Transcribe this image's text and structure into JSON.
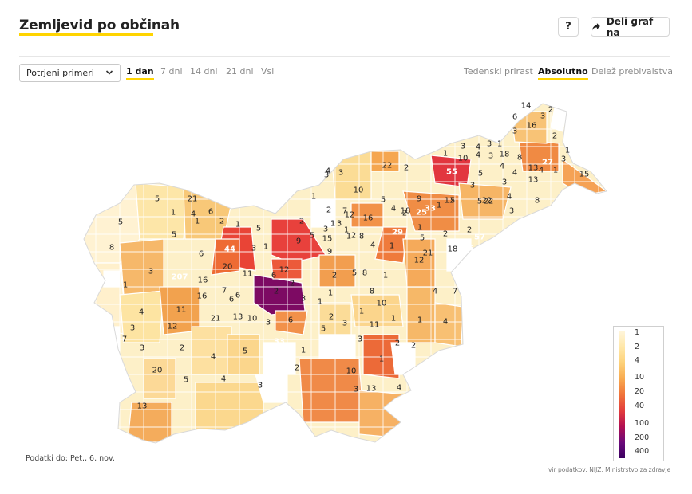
{
  "header": {
    "title": "Zemljevid po občinah",
    "help_label": "?",
    "share_label": "Deli graf na"
  },
  "controls": {
    "select_value": "Potrjeni primeri",
    "periods": [
      "1 dan",
      "7 dni",
      "14 dni",
      "21 dni",
      "Vsi"
    ],
    "active_period": "1 dan",
    "modes": [
      "Tedenski prirast",
      "Absolutno",
      "Delež prebivalstva"
    ],
    "active_mode": "Absolutno"
  },
  "legend": {
    "ticks": [
      "1",
      "2",
      "4",
      "10",
      "20",
      "40",
      "100",
      "200",
      "400"
    ],
    "colors": [
      "#fff6dc",
      "#ffe7a8",
      "#fdd27a",
      "#f8a94f",
      "#f0743a",
      "#e23c3c",
      "#b21050",
      "#6a0a7a",
      "#3a0060"
    ]
  },
  "map_labels": [
    "14",
    "2",
    "6",
    "16",
    "3",
    "3",
    "2",
    "1",
    "3",
    "10",
    "4",
    "18",
    "8",
    "3",
    "1",
    "27",
    "3",
    "4",
    "15",
    "1",
    "55",
    "5",
    "3",
    "4",
    "3",
    "4",
    "4",
    "13",
    "5",
    "22",
    "3",
    "5",
    "13",
    "1",
    "22",
    "2",
    "10",
    "4",
    "3",
    "3",
    "33",
    "5",
    "22",
    "4",
    "3",
    "8",
    "5",
    "21",
    "1",
    "5",
    "1",
    "6",
    "2",
    "4",
    "7",
    "1",
    "2",
    "12",
    "16",
    "4",
    "18",
    "1",
    "25",
    "1",
    "12",
    "2",
    "9",
    "5",
    "1",
    "5",
    "2",
    "5",
    "1",
    "3",
    "3",
    "1",
    "8",
    "1",
    "2",
    "1",
    "29",
    "5",
    "2",
    "2",
    "57",
    "8",
    "6",
    "44",
    "3",
    "1",
    "9",
    "15",
    "9",
    "4",
    "12",
    "21",
    "18",
    "36",
    "3",
    "20",
    "11",
    "12",
    "6",
    "2",
    "5",
    "8",
    "1",
    "207",
    "16",
    "2",
    "2",
    "1",
    "7",
    "1",
    "16",
    "6",
    "1",
    "3",
    "4",
    "7",
    "8",
    "10",
    "11",
    "4",
    "6",
    "21",
    "13",
    "12",
    "10",
    "3",
    "6",
    "1",
    "3",
    "2",
    "1",
    "1",
    "4",
    "3",
    "7",
    "3",
    "2",
    "4",
    "5",
    "33",
    "1",
    "5",
    "11",
    "3",
    "2",
    "2",
    "20",
    "5",
    "4",
    "3",
    "2",
    "10",
    "1",
    "3",
    "13",
    "4",
    "13"
  ],
  "footer": {
    "data_date": "Podatki do: Pet., 6. nov.",
    "source": "vir podatkov: NIJZ, Ministrstvo za zdravje"
  }
}
